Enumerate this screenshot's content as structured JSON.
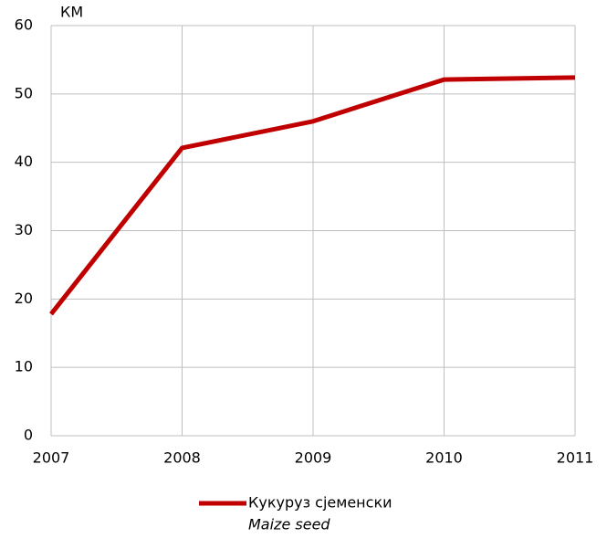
{
  "chart_data": {
    "type": "line",
    "unit_label": "КМ",
    "x": [
      2007,
      2008,
      2009,
      2010,
      2011
    ],
    "xlim": [
      2007,
      2011
    ],
    "xticks": [
      2007,
      2008,
      2009,
      2010,
      2011
    ],
    "ylim": [
      0,
      60
    ],
    "yticks": [
      0,
      10,
      20,
      30,
      40,
      50,
      60
    ],
    "grid": true,
    "series": [
      {
        "name": "Кукуруз сјеменски",
        "color": "#c00000",
        "values": [
          17.8,
          42.1,
          46.0,
          52.1,
          52.4
        ]
      }
    ],
    "legend_subtitle": "Maize seed",
    "legend_position": "bottom"
  }
}
